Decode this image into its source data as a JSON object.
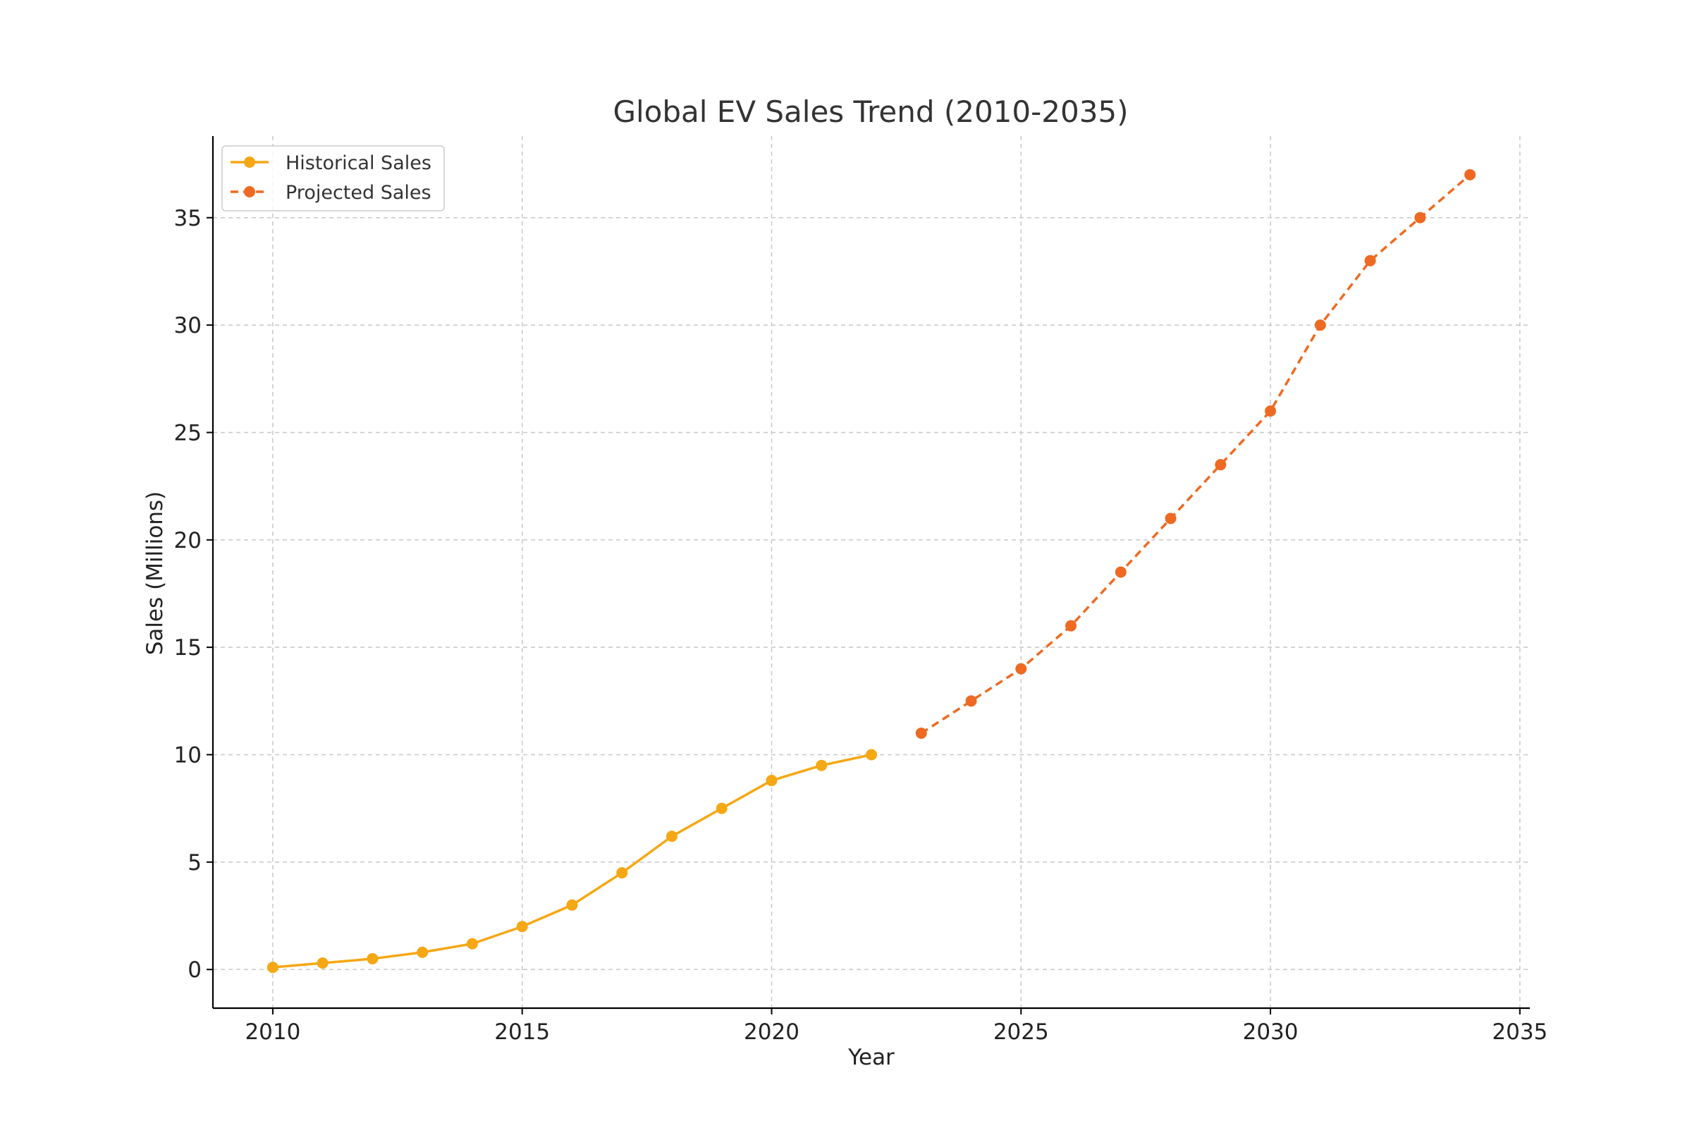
{
  "chart_data": {
    "type": "line",
    "title": "Global EV Sales Trend (2010-2035)",
    "xlabel": "Year",
    "ylabel": "Sales (Millions)",
    "xlim": [
      2008.8,
      2035.2
    ],
    "ylim": [
      -1.8,
      38.8
    ],
    "xticks": [
      2010,
      2015,
      2020,
      2025,
      2030,
      2035
    ],
    "yticks": [
      0,
      5,
      10,
      15,
      20,
      25,
      30,
      35
    ],
    "grid": true,
    "legend_position": "top-left",
    "series": [
      {
        "name": "Historical Sales",
        "color": "#f5a714",
        "line_style": "solid",
        "x": [
          2010,
          2011,
          2012,
          2013,
          2014,
          2015,
          2016,
          2017,
          2018,
          2019,
          2020,
          2021,
          2022
        ],
        "y": [
          0.1,
          0.3,
          0.5,
          0.8,
          1.2,
          2.0,
          3.0,
          4.5,
          6.2,
          7.5,
          8.8,
          9.5,
          10.0
        ]
      },
      {
        "name": "Projected Sales",
        "color": "#ee6a22",
        "line_style": "dashed",
        "x": [
          2023,
          2024,
          2025,
          2026,
          2027,
          2028,
          2029,
          2030,
          2031,
          2032,
          2033,
          2034
        ],
        "y": [
          11.0,
          12.5,
          14.0,
          16.0,
          18.5,
          21.0,
          23.5,
          26.0,
          30.0,
          33.0,
          35.0,
          37.0
        ]
      }
    ]
  }
}
